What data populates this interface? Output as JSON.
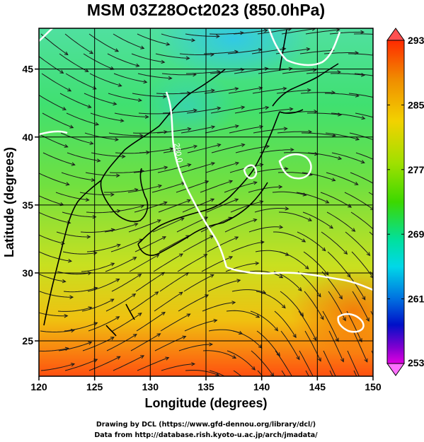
{
  "title": "MSM 03Z28Oct2023 (850.0hPa)",
  "x_axis": {
    "label": "Longitude (degrees)",
    "min": 120,
    "max": 150,
    "ticks": [
      "120",
      "125",
      "130",
      "135",
      "140",
      "145",
      "150"
    ]
  },
  "y_axis": {
    "label": "Latitude (degrees)",
    "min": 22.4,
    "max": 48,
    "ticks": [
      "25",
      "30",
      "35",
      "40",
      "45"
    ]
  },
  "colorbar": {
    "min": 253,
    "max": 293,
    "labels": [
      "293",
      "285",
      "277",
      "269",
      "261",
      "253"
    ],
    "colors": [
      "#ff2a00",
      "#f2d200",
      "#3cd800",
      "#00e0c8",
      "#0010c8",
      "#e000e0"
    ]
  },
  "contour": {
    "value": "280.0",
    "color": "#ffffff"
  },
  "credits": {
    "line1": "Drawing by DCL (https://www.gfd-dennou.org/library/dcl/)",
    "line2": "Data from http://database.rish.kyoto-u.ac.jp/arch/jmadata/"
  }
}
